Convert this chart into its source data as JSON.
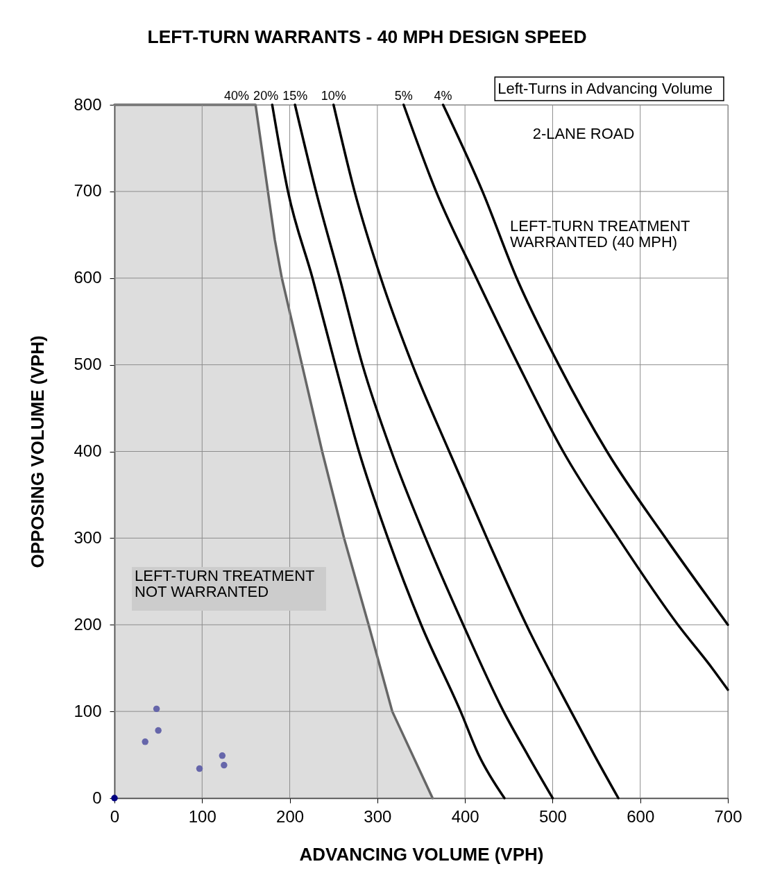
{
  "chart_data": {
    "type": "line",
    "title": "LEFT-TURN WARRANTS - 40 MPH DESIGN SPEED",
    "xlabel": "ADVANCING VOLUME (VPH)",
    "ylabel": "OPPOSING VOLUME (VPH)",
    "legend_title": "Left-Turns in Advancing Volume",
    "annotations": [
      "2-LANE ROAD",
      "LEFT-TURN TREATMENT\nWARRANTED (40 MPH)",
      "LEFT-TURN TREATMENT\nNOT  WARRANTED"
    ],
    "xlim": [
      0,
      700
    ],
    "xticks": [
      0,
      100,
      200,
      300,
      400,
      500,
      600,
      700
    ],
    "ylim": [
      0,
      800
    ],
    "yticks": [
      0,
      100,
      200,
      300,
      400,
      500,
      600,
      700,
      800
    ],
    "grid": true,
    "series": [
      {
        "name": "40%",
        "type": "area",
        "color": "#666666",
        "x": [
          0,
          161,
          183,
          191,
          214,
          237,
          262,
          290,
          317,
          363
        ],
        "values": [
          800,
          800,
          644,
          600,
          500,
          400,
          300,
          200,
          100,
          0
        ]
      },
      {
        "name": "20%",
        "color": "#000000",
        "x": [
          180,
          198,
          226,
          252,
          279,
          312,
          350,
          395,
          416,
          445
        ],
        "values": [
          800,
          700,
          600,
          500,
          400,
          300,
          200,
          100,
          49,
          0
        ]
      },
      {
        "name": "15%",
        "color": "#000000",
        "x": [
          206,
          230,
          257,
          283,
          316,
          355,
          398,
          444,
          472,
          500
        ],
        "values": [
          800,
          700,
          600,
          500,
          400,
          300,
          200,
          100,
          49,
          0
        ]
      },
      {
        "name": "10%",
        "color": "#000000",
        "x": [
          250,
          274,
          304,
          340,
          382,
          425,
          470,
          521,
          548,
          575
        ],
        "values": [
          800,
          700,
          600,
          500,
          400,
          300,
          200,
          100,
          49,
          0
        ]
      },
      {
        "name": "5%",
        "color": "#000000",
        "x": [
          330,
          367,
          413,
          461,
          512,
          575,
          643,
          682,
          700
        ],
        "values": [
          800,
          700,
          600,
          500,
          400,
          300,
          200,
          150,
          125
        ]
      },
      {
        "name": "4%",
        "color": "#000000",
        "x": [
          375,
          420,
          459,
          507,
          562,
          629,
          700
        ],
        "values": [
          800,
          700,
          600,
          500,
          400,
          300,
          200
        ]
      },
      {
        "type": "scatter",
        "marker": "circle",
        "color": "#6666aa",
        "x": [
          48,
          50,
          35,
          97,
          123,
          125
        ],
        "values": [
          103,
          78,
          65,
          34,
          49,
          38
        ]
      },
      {
        "type": "scatter",
        "marker": "circle",
        "color": "#000080",
        "x": [
          0
        ],
        "values": [
          0
        ]
      }
    ]
  }
}
